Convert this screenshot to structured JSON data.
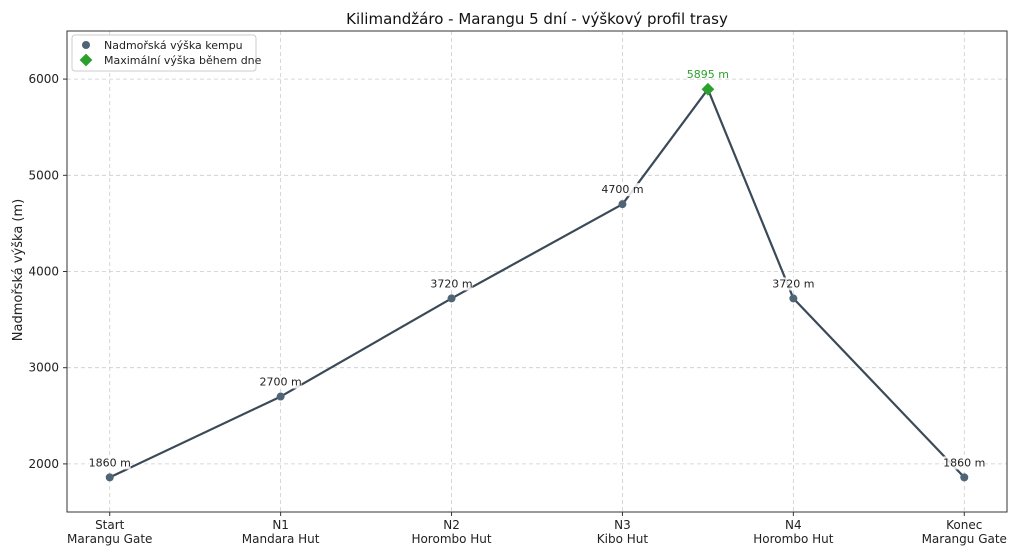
{
  "chart_data": {
    "type": "line",
    "title": "Kilimandžáro - Marangu 5 dní - výškový profil trasy",
    "xlabel": "",
    "ylabel": "Nadmořská výška (m)",
    "ylim": [
      1500,
      6500
    ],
    "yticks": [
      2000,
      3000,
      4000,
      5000,
      6000
    ],
    "xlim": [
      -0.25,
      5.25
    ],
    "categories": [
      {
        "line1": "Start",
        "line2": "Marangu Gate"
      },
      {
        "line1": "N1",
        "line2": "Mandara Hut"
      },
      {
        "line1": "N2",
        "line2": "Horombo Hut"
      },
      {
        "line1": "N3",
        "line2": "Kibo Hut"
      },
      {
        "line1": "N4",
        "line2": "Horombo Hut"
      },
      {
        "line1": "Konec",
        "line2": "Marangu Gate"
      }
    ],
    "route": [
      {
        "x": 0,
        "y": 1860
      },
      {
        "x": 1,
        "y": 2700
      },
      {
        "x": 2,
        "y": 3720
      },
      {
        "x": 3,
        "y": 4700
      },
      {
        "x": 3.5,
        "y": 5895
      },
      {
        "x": 4,
        "y": 3720
      },
      {
        "x": 5,
        "y": 1860
      }
    ],
    "camps": {
      "name": "Nadmořská výška kempu",
      "points": [
        {
          "x": 0,
          "y": 1860,
          "label": "1860 m"
        },
        {
          "x": 1,
          "y": 2700,
          "label": "2700 m"
        },
        {
          "x": 2,
          "y": 3720,
          "label": "3720 m"
        },
        {
          "x": 3,
          "y": 4700,
          "label": "4700 m"
        },
        {
          "x": 4,
          "y": 3720,
          "label": "3720 m"
        },
        {
          "x": 5,
          "y": 1860,
          "label": "1860 m"
        }
      ]
    },
    "summit": {
      "name": "Maximální výška během dne",
      "points": [
        {
          "x": 3.5,
          "y": 5895,
          "label": "5895 m"
        }
      ]
    },
    "legend_position": "top-left",
    "grid": true,
    "colors": {
      "line": "#3a4a58",
      "camp": "#4f6475",
      "summit": "#2ca02c",
      "summit_text": "#2ca02c"
    }
  }
}
